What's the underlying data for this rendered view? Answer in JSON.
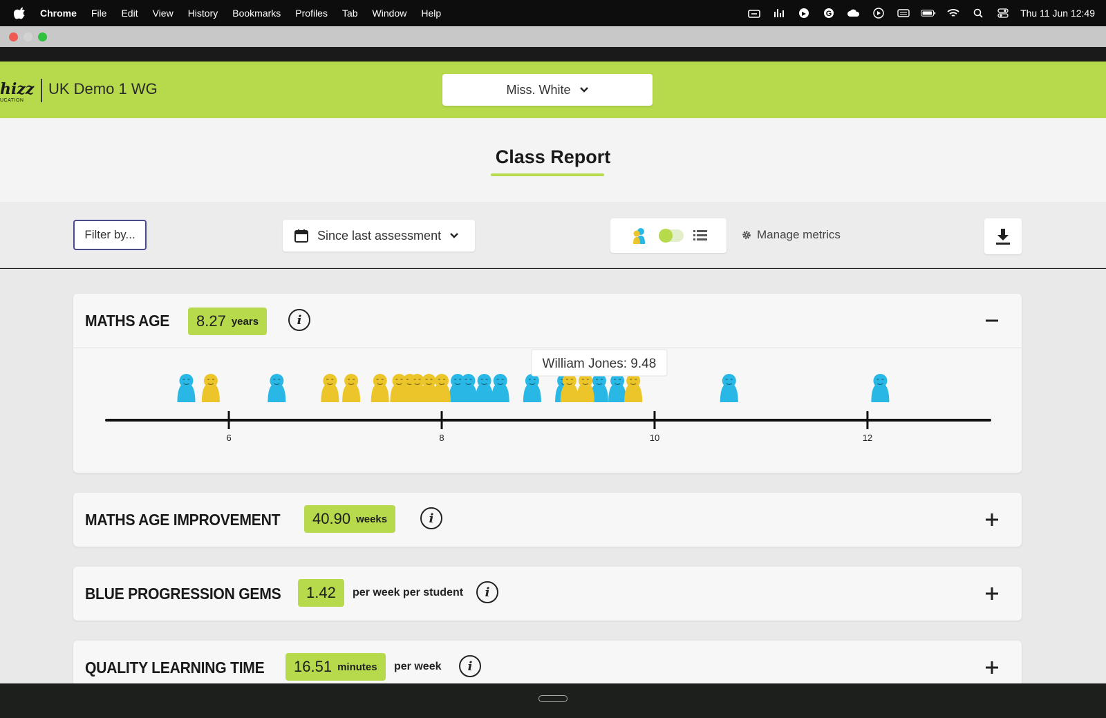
{
  "menubar": {
    "app": "Chrome",
    "items": [
      "File",
      "Edit",
      "View",
      "History",
      "Bookmarks",
      "Profiles",
      "Tab",
      "Window",
      "Help"
    ],
    "clock": "Thu 11 Jun  12:49"
  },
  "header": {
    "logo_text": "hizz",
    "logo_sub": "UCATION",
    "school": "UK Demo 1 WG",
    "teacher": "Miss. White"
  },
  "page": {
    "title": "Class Report"
  },
  "toolbar": {
    "filter_label": "Filter by...",
    "period_label": "Since last assessment",
    "manage_label": "Manage metrics"
  },
  "metrics": [
    {
      "title": "MATHS AGE",
      "value": "8.27",
      "unit": "years",
      "extra": "",
      "expanded": true,
      "toggle": "−"
    },
    {
      "title": "MATHS AGE IMPROVEMENT",
      "value": "40.90",
      "unit": "weeks",
      "extra": "",
      "expanded": false,
      "toggle": "+"
    },
    {
      "title": "BLUE PROGRESSION GEMS",
      "value": "1.42",
      "unit": "",
      "extra": "per week per student",
      "expanded": false,
      "toggle": "+"
    },
    {
      "title": "QUALITY LEARNING TIME",
      "value": "16.51",
      "unit": "minutes",
      "extra": "per week",
      "expanded": false,
      "toggle": "+"
    }
  ],
  "chart_data": {
    "type": "scatter",
    "title": "",
    "xlabel": "",
    "ylabel": "",
    "xlim": [
      4.85,
      13.15
    ],
    "xticks": [
      6,
      8,
      10,
      12
    ],
    "tooltip": "William Jones: 9.48",
    "series": [
      {
        "color": "#29b8e6",
        "x": [
          5.6,
          6.45,
          8.15,
          8.25,
          8.4,
          8.55,
          8.85,
          9.15,
          9.48,
          9.65,
          10.7,
          12.12
        ]
      },
      {
        "color": "#ecc52a",
        "x": [
          5.83,
          6.95,
          7.15,
          7.42,
          7.6,
          7.7,
          7.77,
          7.88,
          8.0,
          9.2,
          9.35,
          9.8
        ]
      }
    ]
  },
  "colors": {
    "accent": "#b6da4c",
    "blue_pupil": "#29b8e6",
    "yellow_pupil": "#ecc52a"
  }
}
